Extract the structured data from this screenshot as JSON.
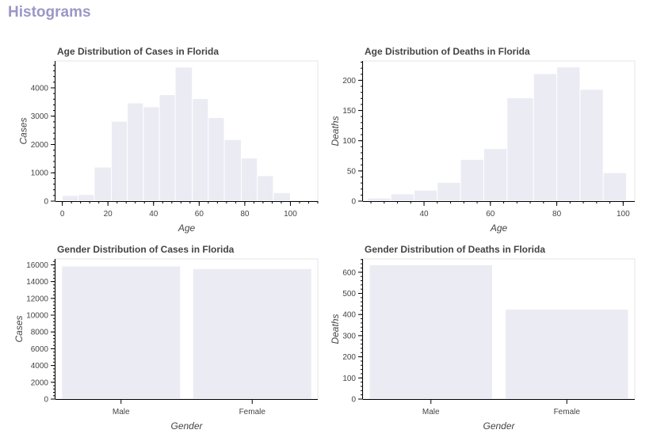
{
  "page": {
    "title": "Histograms",
    "title_color": "#9a97c6"
  },
  "style": {
    "bar_fill": "#ebebf4",
    "bar_stroke": "#ffffff",
    "axis_color": "#000000",
    "text_color": "#444444"
  },
  "chart_data": [
    {
      "id": "age-cases",
      "type": "bar",
      "title": "Age Distribution of Cases in Florida",
      "xlabel": "Age",
      "ylabel": "Cases",
      "x_ticks": [
        "0",
        "20",
        "40",
        "60",
        "80",
        "100"
      ],
      "x_tick_values": [
        0,
        20,
        40,
        60,
        80,
        100
      ],
      "y_ticks": [
        "0",
        "1000",
        "2000",
        "3000",
        "4000"
      ],
      "y_tick_values": [
        0,
        1000,
        2000,
        3000,
        4000
      ],
      "xlim": [
        -3,
        112
      ],
      "ylim": [
        0,
        4950
      ],
      "bins": [
        {
          "x0": 0,
          "x1": 7,
          "value": 200
        },
        {
          "x0": 7,
          "x1": 14,
          "value": 230
        },
        {
          "x0": 14,
          "x1": 21.5,
          "value": 1200
        },
        {
          "x0": 21.5,
          "x1": 28.5,
          "value": 2820
        },
        {
          "x0": 28.5,
          "x1": 35.5,
          "value": 3470
        },
        {
          "x0": 35.5,
          "x1": 42.5,
          "value": 3330
        },
        {
          "x0": 42.5,
          "x1": 49.5,
          "value": 3760
        },
        {
          "x0": 49.5,
          "x1": 57,
          "value": 4730
        },
        {
          "x0": 57,
          "x1": 64,
          "value": 3620
        },
        {
          "x0": 64,
          "x1": 71,
          "value": 2950
        },
        {
          "x0": 71,
          "x1": 78.5,
          "value": 2170
        },
        {
          "x0": 78.5,
          "x1": 85.5,
          "value": 1520
        },
        {
          "x0": 85.5,
          "x1": 92.5,
          "value": 900
        },
        {
          "x0": 92.5,
          "x1": 100,
          "value": 300
        }
      ]
    },
    {
      "id": "age-deaths",
      "type": "bar",
      "title": "Age Distribution of Deaths in Florida",
      "xlabel": "Age",
      "ylabel": "Deaths",
      "x_ticks": [
        "40",
        "60",
        "80",
        "100"
      ],
      "x_tick_values": [
        40,
        60,
        80,
        100
      ],
      "y_ticks": [
        "0",
        "50",
        "100",
        "150",
        "200"
      ],
      "y_tick_values": [
        0,
        50,
        100,
        150,
        200
      ],
      "xlim": [
        21.6,
        103.5
      ],
      "ylim": [
        0,
        232
      ],
      "bins": [
        {
          "x0": 23,
          "x1": 30,
          "value": 5
        },
        {
          "x0": 30,
          "x1": 37,
          "value": 12
        },
        {
          "x0": 37,
          "x1": 44,
          "value": 18
        },
        {
          "x0": 44,
          "x1": 51,
          "value": 31
        },
        {
          "x0": 51,
          "x1": 58,
          "value": 69
        },
        {
          "x0": 58,
          "x1": 65,
          "value": 87
        },
        {
          "x0": 65,
          "x1": 73,
          "value": 171
        },
        {
          "x0": 73,
          "x1": 80,
          "value": 211
        },
        {
          "x0": 80,
          "x1": 87,
          "value": 222
        },
        {
          "x0": 87,
          "x1": 94,
          "value": 185
        },
        {
          "x0": 94,
          "x1": 101,
          "value": 47
        }
      ]
    },
    {
      "id": "gender-cases",
      "type": "bar",
      "title": "Gender Distribution of Cases in Florida",
      "xlabel": "Gender",
      "ylabel": "Cases",
      "categories": [
        "Male",
        "Female"
      ],
      "values": [
        15800,
        15500
      ],
      "y_ticks": [
        "0",
        "2000",
        "4000",
        "6000",
        "8000",
        "10000",
        "12000",
        "14000",
        "16000"
      ],
      "y_tick_values": [
        0,
        2000,
        4000,
        6000,
        8000,
        10000,
        12000,
        14000,
        16000
      ],
      "ylim": [
        0,
        16700
      ]
    },
    {
      "id": "gender-deaths",
      "type": "bar",
      "title": "Gender Distribution of Deaths in Florida",
      "xlabel": "Gender",
      "ylabel": "Deaths",
      "categories": [
        "Male",
        "Female"
      ],
      "values": [
        633,
        423
      ],
      "y_ticks": [
        "0",
        "100",
        "200",
        "300",
        "400",
        "500",
        "600"
      ],
      "y_tick_values": [
        0,
        100,
        200,
        300,
        400,
        500,
        600
      ],
      "ylim": [
        0,
        663
      ]
    }
  ]
}
